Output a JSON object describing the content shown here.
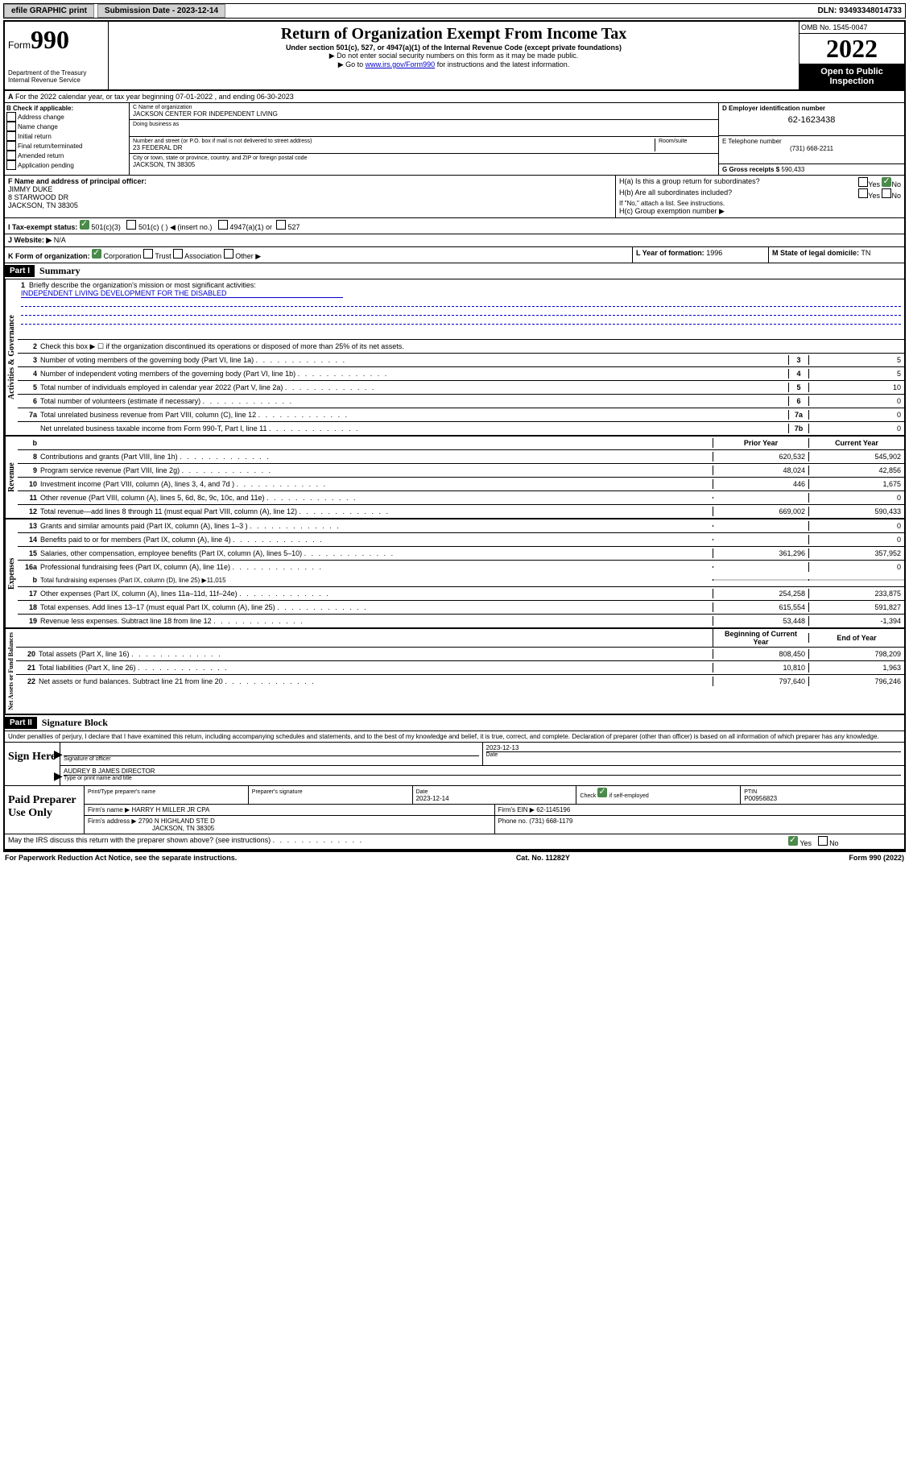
{
  "header": {
    "efile_label": "efile GRAPHIC print",
    "submission_label": "Submission Date - 2023-12-14",
    "dln": "DLN: 93493348014733"
  },
  "form": {
    "form_word": "Form",
    "number": "990",
    "title": "Return of Organization Exempt From Income Tax",
    "subtitle": "Under section 501(c), 527, or 4947(a)(1) of the Internal Revenue Code (except private foundations)",
    "note1": "▶ Do not enter social security numbers on this form as it may be made public.",
    "note2_prefix": "▶ Go to ",
    "note2_link": "www.irs.gov/Form990",
    "note2_suffix": " for instructions and the latest information.",
    "dept": "Department of the Treasury",
    "irs": "Internal Revenue Service",
    "omb": "OMB No. 1545-0047",
    "year": "2022",
    "open_public": "Open to Public Inspection"
  },
  "section_a": "For the 2022 calendar year, or tax year beginning 07-01-2022   , and ending 06-30-2023",
  "section_b": {
    "label": "B Check if applicable:",
    "opts": [
      "Address change",
      "Name change",
      "Initial return",
      "Final return/terminated",
      "Amended return",
      "Application pending"
    ]
  },
  "section_c": {
    "name_label": "C Name of organization",
    "name": "JACKSON CENTER FOR INDEPENDENT LIVING",
    "dba_label": "Doing business as",
    "addr_label": "Number and street (or P.O. box if mail is not delivered to street address)",
    "room_label": "Room/suite",
    "addr": "23 FEDERAL DR",
    "city_label": "City or town, state or province, country, and ZIP or foreign postal code",
    "city": "JACKSON, TN  38305"
  },
  "section_d": {
    "label": "D Employer identification number",
    "ein": "62-1623438"
  },
  "section_e": {
    "label": "E Telephone number",
    "phone": "(731) 668-2211"
  },
  "section_g": {
    "label": "G Gross receipts $",
    "value": "590,433"
  },
  "section_f": {
    "label": "F Name and address of principal officer:",
    "name": "JIMMY DUKE",
    "addr1": "8 STARWOOD DR",
    "addr2": "JACKSON, TN  38305"
  },
  "section_h": {
    "ha": "H(a)  Is this a group return for subordinates?",
    "hb": "H(b)  Are all subordinates included?",
    "hb_note": "If \"No,\" attach a list. See instructions.",
    "hc": "H(c)  Group exemption number ▶"
  },
  "section_i": {
    "label": "I   Tax-exempt status:",
    "opt1": "501(c)(3)",
    "opt2": "501(c) (  ) ◀ (insert no.)",
    "opt3": "4947(a)(1) or",
    "opt4": "527"
  },
  "section_j": {
    "label": "J   Website: ▶",
    "value": "N/A"
  },
  "section_k": {
    "label": "K Form of organization:",
    "opts": [
      "Corporation",
      "Trust",
      "Association",
      "Other ▶"
    ]
  },
  "section_l": {
    "label": "L Year of formation:",
    "value": "1996"
  },
  "section_m": {
    "label": "M State of legal domicile:",
    "value": "TN"
  },
  "part1": {
    "header": "Part I",
    "title": "Summary",
    "line1_label": "Briefly describe the organization's mission or most significant activities:",
    "line1_value": "INDEPENDENT LIVING DEVELOPMENT FOR THE DISABLED",
    "line2": "Check this box ▶ ☐  if the organization discontinued its operations or disposed of more than 25% of its net assets.",
    "sections": {
      "governance": "Activities & Governance",
      "revenue": "Revenue",
      "expenses": "Expenses",
      "netassets": "Net Assets or Fund Balances"
    },
    "gov_lines": [
      {
        "n": "3",
        "t": "Number of voting members of the governing body (Part VI, line 1a)",
        "box": "3",
        "v": "5"
      },
      {
        "n": "4",
        "t": "Number of independent voting members of the governing body (Part VI, line 1b)",
        "box": "4",
        "v": "5"
      },
      {
        "n": "5",
        "t": "Total number of individuals employed in calendar year 2022 (Part V, line 2a)",
        "box": "5",
        "v": "10"
      },
      {
        "n": "6",
        "t": "Total number of volunteers (estimate if necessary)",
        "box": "6",
        "v": "0"
      },
      {
        "n": "7a",
        "t": "Total unrelated business revenue from Part VIII, column (C), line 12",
        "box": "7a",
        "v": "0"
      },
      {
        "n": "",
        "t": "Net unrelated business taxable income from Form 990-T, Part I, line 11",
        "box": "7b",
        "v": "0"
      }
    ],
    "col_headers": {
      "b": "b",
      "prior": "Prior Year",
      "current": "Current Year",
      "boy": "Beginning of Current Year",
      "eoy": "End of Year"
    },
    "rev_lines": [
      {
        "n": "8",
        "t": "Contributions and grants (Part VIII, line 1h)",
        "p": "620,532",
        "c": "545,902"
      },
      {
        "n": "9",
        "t": "Program service revenue (Part VIII, line 2g)",
        "p": "48,024",
        "c": "42,856"
      },
      {
        "n": "10",
        "t": "Investment income (Part VIII, column (A), lines 3, 4, and 7d )",
        "p": "446",
        "c": "1,675"
      },
      {
        "n": "11",
        "t": "Other revenue (Part VIII, column (A), lines 5, 6d, 8c, 9c, 10c, and 11e)",
        "p": "",
        "c": "0"
      },
      {
        "n": "12",
        "t": "Total revenue—add lines 8 through 11 (must equal Part VIII, column (A), line 12)",
        "p": "669,002",
        "c": "590,433"
      }
    ],
    "exp_lines": [
      {
        "n": "13",
        "t": "Grants and similar amounts paid (Part IX, column (A), lines 1–3 )",
        "p": "",
        "c": "0"
      },
      {
        "n": "14",
        "t": "Benefits paid to or for members (Part IX, column (A), line 4)",
        "p": "",
        "c": "0"
      },
      {
        "n": "15",
        "t": "Salaries, other compensation, employee benefits (Part IX, column (A), lines 5–10)",
        "p": "361,296",
        "c": "357,952"
      },
      {
        "n": "16a",
        "t": "Professional fundraising fees (Part IX, column (A), line 11e)",
        "p": "",
        "c": "0"
      }
    ],
    "exp_16b": {
      "n": "b",
      "t": "Total fundraising expenses (Part IX, column (D), line 25) ▶11,015"
    },
    "exp_lines2": [
      {
        "n": "17",
        "t": "Other expenses (Part IX, column (A), lines 11a–11d, 11f–24e)",
        "p": "254,258",
        "c": "233,875"
      },
      {
        "n": "18",
        "t": "Total expenses. Add lines 13–17 (must equal Part IX, column (A), line 25)",
        "p": "615,554",
        "c": "591,827"
      },
      {
        "n": "19",
        "t": "Revenue less expenses. Subtract line 18 from line 12",
        "p": "53,448",
        "c": "-1,394"
      }
    ],
    "na_lines": [
      {
        "n": "20",
        "t": "Total assets (Part X, line 16)",
        "p": "808,450",
        "c": "798,209"
      },
      {
        "n": "21",
        "t": "Total liabilities (Part X, line 26)",
        "p": "10,810",
        "c": "1,963"
      },
      {
        "n": "22",
        "t": "Net assets or fund balances. Subtract line 21 from line 20",
        "p": "797,640",
        "c": "796,246"
      }
    ]
  },
  "part2": {
    "header": "Part II",
    "title": "Signature Block",
    "penalties": "Under penalties of perjury, I declare that I have examined this return, including accompanying schedules and statements, and to the best of my knowledge and belief, it is true, correct, and complete. Declaration of preparer (other than officer) is based on all information of which preparer has any knowledge."
  },
  "sign": {
    "label": "Sign Here",
    "sig_label": "Signature of officer",
    "date": "2023-12-13",
    "date_label": "Date",
    "name": "AUDREY B JAMES  DIRECTOR",
    "name_label": "Type or print name and title"
  },
  "preparer": {
    "label": "Paid Preparer Use Only",
    "print_label": "Print/Type preparer's name",
    "sig_label": "Preparer's signature",
    "date_label": "Date",
    "date": "2023-12-14",
    "check_label": "Check",
    "check_suffix": "if self-employed",
    "ptin_label": "PTIN",
    "ptin": "P00956823",
    "firm_name_label": "Firm's name    ▶",
    "firm_name": "HARRY H MILLER JR CPA",
    "firm_ein_label": "Firm's EIN ▶",
    "firm_ein": "62-1145196",
    "firm_addr_label": "Firm's address ▶",
    "firm_addr1": "2790 N HIGHLAND STE D",
    "firm_addr2": "JACKSON, TN  38305",
    "phone_label": "Phone no.",
    "phone": "(731) 668-1179"
  },
  "discuss": "May the IRS discuss this return with the preparer shown above? (see instructions)",
  "footer": {
    "left": "For Paperwork Reduction Act Notice, see the separate instructions.",
    "center": "Cat. No. 11282Y",
    "right": "Form 990 (2022)"
  },
  "yesno": {
    "yes": "Yes",
    "no": "No"
  }
}
